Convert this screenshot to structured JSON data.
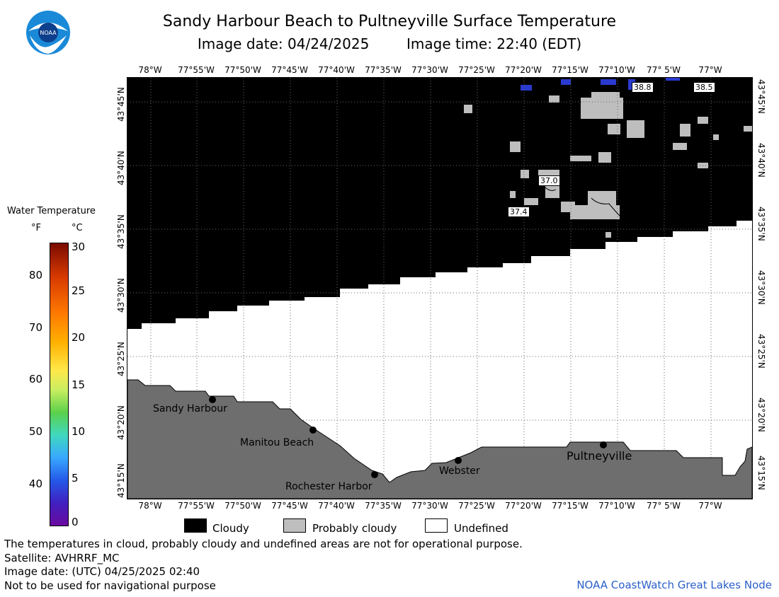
{
  "header": {
    "title": "Sandy Harbour Beach to Pultneyville Surface Temperature",
    "image_date": "Image date: 04/24/2025",
    "image_time": "Image time: 22:40 (EDT)"
  },
  "logo": {
    "text": "NOAA",
    "icon": "noaa-logo-icon"
  },
  "map": {
    "lon_labels": [
      "78°W",
      "77°55'W",
      "77°50'W",
      "77°45'W",
      "77°40'W",
      "77°35'W",
      "77°30'W",
      "77°25'W",
      "77°20'W",
      "77°15'W",
      "77°10'W",
      "77° 5'W",
      "77°W"
    ],
    "lat_labels": [
      "43°45'N",
      "43°40'N",
      "43°35'N",
      "43°30'N",
      "43°25'N",
      "43°20'N",
      "43°15'N"
    ],
    "places": [
      {
        "name": "Sandy Harbour"
      },
      {
        "name": "Manitou Beach"
      },
      {
        "name": "Rochester Harbor"
      },
      {
        "name": "Webster"
      },
      {
        "name": "Pultneyville"
      }
    ],
    "temperature_labels": [
      "38.8",
      "38.5",
      "37.0",
      "37.4"
    ],
    "colors": {
      "cloudy": "#000000",
      "probably_cloudy": "#bebebe",
      "land": "#6e6e6e",
      "undefined": "#ffffff",
      "cold_water": "#2a3ad0"
    }
  },
  "colorbar": {
    "title": "Water Temperature",
    "unit_f": "°F",
    "unit_c": "°C",
    "f_ticks": [
      "80",
      "70",
      "60",
      "50",
      "40"
    ],
    "c_ticks": [
      "30",
      "25",
      "20",
      "15",
      "10",
      "5",
      "0"
    ]
  },
  "legend": {
    "cloudy": "Cloudy",
    "probably_cloudy": "Probably cloudy",
    "undefined": "Undefined"
  },
  "footer": {
    "disclaimer": "The temperatures in cloud, probably cloudy and undefined areas are not for operational purpose.",
    "satellite": "Satellite: AVHRRF_MC",
    "utc_date": "Image date: (UTC) 04/25/2025  02:40",
    "navigation": "Not to be used for navigational purpose",
    "credit": "NOAA CoastWatch Great Lakes Node"
  }
}
